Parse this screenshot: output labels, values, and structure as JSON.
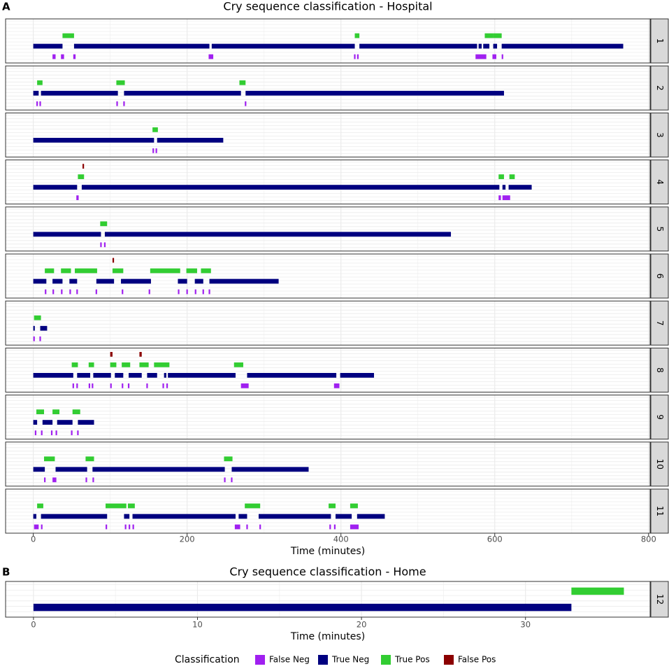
{
  "chart_data": [
    {
      "type": "timeline",
      "panel_label": "A",
      "title": "Cry sequence classification - Hospital",
      "x_label": "Time (minutes)",
      "xlim": [
        -36,
        802
      ],
      "xticks": [
        0,
        200,
        400,
        600,
        800
      ],
      "grid": true,
      "facets": [
        {
          "label": "1",
          "intervals": [
            [
              [
                25,
                29
              ],
              [
                36,
                40
              ],
              [
                52,
                55
              ],
              [
                228,
                234
              ],
              [
                417,
                419
              ],
              [
                421,
                423
              ],
              [
                575,
                589
              ],
              [
                597,
                602
              ],
              [
                609,
                611
              ]
            ],
            [
              [
                0,
                38
              ],
              [
                53,
                229
              ],
              [
                232,
                418
              ],
              [
                424,
                577
              ],
              [
                579,
                583
              ],
              [
                585,
                593
              ],
              [
                598,
                603
              ],
              [
                609,
                767
              ]
            ],
            [
              [
                38,
                53
              ],
              [
                418,
                424
              ],
              [
                587,
                598
              ],
              [
                598,
                609
              ]
            ],
            []
          ]
        },
        {
          "label": "2",
          "intervals": [
            [
              [
                4,
                6
              ],
              [
                8,
                10
              ],
              [
                108,
                110
              ],
              [
                117,
                119
              ],
              [
                275,
                277
              ]
            ],
            [
              [
                0,
                7
              ],
              [
                10,
                110
              ],
              [
                118,
                270
              ],
              [
                276,
                612
              ]
            ],
            [
              [
                5,
                12
              ],
              [
                108,
                119
              ],
              [
                268,
                276
              ]
            ],
            []
          ]
        },
        {
          "label": "3",
          "intervals": [
            [
              [
                155,
                157
              ],
              [
                159,
                161
              ]
            ],
            [
              [
                0,
                157
              ],
              [
                161,
                247
              ]
            ],
            [
              [
                155,
                162
              ]
            ],
            []
          ]
        },
        {
          "label": "4",
          "intervals": [
            [
              [
                56,
                59
              ],
              [
                605,
                608
              ],
              [
                610,
                620
              ]
            ],
            [
              [
                0,
                57
              ],
              [
                63,
                606
              ],
              [
                610,
                614
              ],
              [
                618,
                648
              ]
            ],
            [
              [
                58,
                66
              ],
              [
                605,
                612
              ],
              [
                619,
                626
              ]
            ],
            [
              [
                64,
                66
              ]
            ]
          ]
        },
        {
          "label": "5",
          "intervals": [
            [
              [
                87,
                89
              ],
              [
                92,
                94
              ]
            ],
            [
              [
                0,
                88
              ],
              [
                93,
                543
              ]
            ],
            [
              [
                87,
                96
              ]
            ],
            []
          ]
        },
        {
          "label": "6",
          "intervals": [
            [
              [
                15,
                17
              ],
              [
                25,
                27
              ],
              [
                36,
                38
              ],
              [
                47,
                49
              ],
              [
                56,
                58
              ],
              [
                81,
                83
              ],
              [
                115,
                117
              ],
              [
                150,
                152
              ],
              [
                188,
                190
              ],
              [
                199,
                201
              ],
              [
                210,
                212
              ],
              [
                220,
                222
              ],
              [
                228,
                230
              ]
            ],
            [
              [
                0,
                17
              ],
              [
                25,
                38
              ],
              [
                47,
                57
              ],
              [
                82,
                105
              ],
              [
                114,
                153
              ],
              [
                188,
                200
              ],
              [
                210,
                221
              ],
              [
                229,
                319
              ]
            ],
            [
              [
                15,
                27
              ],
              [
                36,
                49
              ],
              [
                54,
                83
              ],
              [
                103,
                117
              ],
              [
                152,
                191
              ],
              [
                199,
                213
              ],
              [
                218,
                231
              ]
            ],
            [
              [
                103,
                105
              ]
            ]
          ]
        },
        {
          "label": "7",
          "intervals": [
            [
              [
                0,
                2
              ],
              [
                8,
                10
              ]
            ],
            [
              [
                0,
                2
              ],
              [
                9,
                18
              ]
            ],
            [
              [
                1,
                10
              ]
            ],
            []
          ]
        },
        {
          "label": "8",
          "intervals": [
            [
              [
                51,
                53
              ],
              [
                56,
                58
              ],
              [
                72,
                74
              ],
              [
                76,
                78
              ],
              [
                100,
                102
              ],
              [
                115,
                117
              ],
              [
                123,
                125
              ],
              [
                147,
                149
              ],
              [
                168,
                170
              ],
              [
                173,
                175
              ],
              [
                270,
                280
              ],
              [
                391,
                398
              ]
            ],
            [
              [
                0,
                52
              ],
              [
                57,
                74
              ],
              [
                78,
                101
              ],
              [
                106,
                117
              ],
              [
                124,
                141
              ],
              [
                148,
                161
              ],
              [
                170,
                173
              ],
              [
                175,
                263
              ],
              [
                278,
                394
              ],
              [
                399,
                443
              ]
            ],
            [
              [
                50,
                58
              ],
              [
                72,
                79
              ],
              [
                100,
                108
              ],
              [
                115,
                126
              ],
              [
                138,
                150
              ],
              [
                157,
                177
              ],
              [
                261,
                273
              ]
            ],
            [
              [
                100,
                103
              ],
              [
                138,
                141
              ]
            ]
          ]
        },
        {
          "label": "9",
          "intervals": [
            [
              [
                2,
                4
              ],
              [
                10,
                12
              ],
              [
                23,
                25
              ],
              [
                29,
                31
              ],
              [
                49,
                51
              ],
              [
                57,
                59
              ]
            ],
            [
              [
                0,
                5
              ],
              [
                12,
                25
              ],
              [
                31,
                51
              ],
              [
                58,
                79
              ]
            ],
            [
              [
                4,
                14
              ],
              [
                25,
                34
              ],
              [
                51,
                61
              ]
            ],
            []
          ]
        },
        {
          "label": "10",
          "intervals": [
            [
              [
                14,
                16
              ],
              [
                25,
                30
              ],
              [
                68,
                70
              ],
              [
                77,
                79
              ],
              [
                248,
                250
              ],
              [
                257,
                259
              ]
            ],
            [
              [
                0,
                15
              ],
              [
                29,
                70
              ],
              [
                77,
                249
              ],
              [
                258,
                358
              ]
            ],
            [
              [
                14,
                28
              ],
              [
                68,
                79
              ],
              [
                248,
                259
              ]
            ],
            []
          ]
        },
        {
          "label": "11",
          "intervals": [
            [
              [
                1,
                7
              ],
              [
                10,
                12
              ],
              [
                94,
                96
              ],
              [
                119,
                121
              ],
              [
                124,
                126
              ],
              [
                129,
                131
              ],
              [
                262,
                269
              ],
              [
                277,
                279
              ],
              [
                294,
                296
              ],
              [
                385,
                387
              ],
              [
                391,
                393
              ],
              [
                412,
                423
              ]
            ],
            [
              [
                0,
                4
              ],
              [
                10,
                96
              ],
              [
                118,
                125
              ],
              [
                129,
                263
              ],
              [
                267,
                278
              ],
              [
                293,
                387
              ],
              [
                393,
                414
              ],
              [
                421,
                457
              ]
            ],
            [
              [
                5,
                13
              ],
              [
                94,
                121
              ],
              [
                123,
                132
              ],
              [
                275,
                295
              ],
              [
                384,
                393
              ],
              [
                412,
                422
              ]
            ],
            []
          ]
        }
      ]
    },
    {
      "type": "timeline",
      "panel_label": "B",
      "title": "Cry sequence classification - Home",
      "x_label": "Time (minutes)",
      "xlim": [
        -1.7,
        37.6
      ],
      "xticks": [
        0,
        10,
        20,
        30
      ],
      "grid": true,
      "facets": [
        {
          "label": "12",
          "intervals": [
            [],
            [
              [
                0,
                32.8
              ]
            ],
            [
              [
                32.8,
                36
              ]
            ],
            []
          ]
        }
      ]
    }
  ],
  "legend": {
    "title": "Classification",
    "classes": [
      {
        "name": "False Neg",
        "color": "#a020f0"
      },
      {
        "name": "True Neg",
        "color": "#000080"
      },
      {
        "name": "True Pos",
        "color": "#32cd32"
      },
      {
        "name": "False Pos",
        "color": "#8b0000"
      }
    ]
  }
}
